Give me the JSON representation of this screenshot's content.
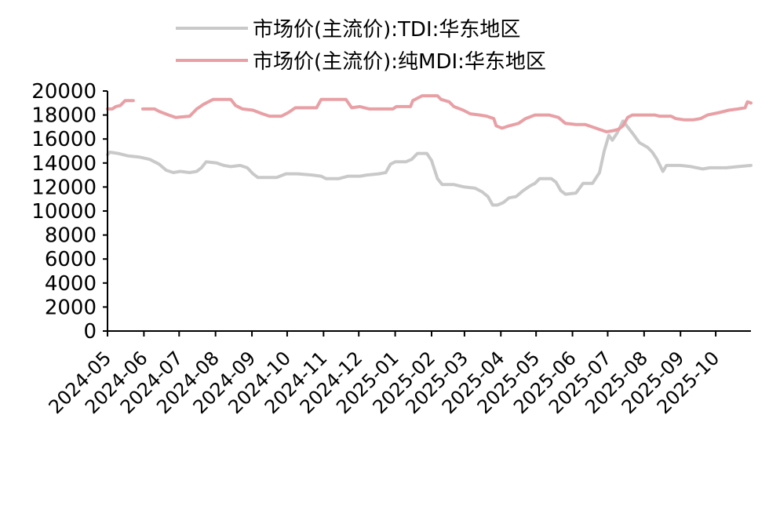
{
  "colors": {
    "tdi": "#c9c9c9",
    "mdi": "#e8a0a5",
    "axis": "#000000"
  },
  "chart_data": {
    "type": "line",
    "title": "",
    "xlabel": "",
    "ylabel": "",
    "ylim": [
      0,
      20000
    ],
    "yticks": [
      0,
      2000,
      4000,
      6000,
      8000,
      10000,
      12000,
      14000,
      16000,
      18000,
      20000
    ],
    "xlim": [
      "2024-05-01",
      "2025-10-31"
    ],
    "xticks": [
      "2024-05",
      "2024-06",
      "2024-07",
      "2024-08",
      "2024-09",
      "2024-10",
      "2024-11",
      "2024-12",
      "2025-01",
      "2025-02",
      "2025-03",
      "2025-04",
      "2025-05",
      "2025-06",
      "2025-07",
      "2025-08",
      "2025-09",
      "2025-10"
    ],
    "grid": false,
    "legend_position": "top",
    "series": [
      {
        "name": "市场价(主流价):TDI:华东地区",
        "color": "#c9c9c9",
        "points": [
          [
            "2024-05-01",
            14700
          ],
          [
            "2024-05-03",
            14900
          ],
          [
            "2024-05-10",
            14800
          ],
          [
            "2024-05-18",
            14600
          ],
          [
            "2024-05-28",
            14500
          ],
          [
            "2024-06-06",
            14300
          ],
          [
            "2024-06-14",
            13900
          ],
          [
            "2024-06-20",
            13400
          ],
          [
            "2024-06-26",
            13200
          ],
          [
            "2024-07-02",
            13300
          ],
          [
            "2024-07-10",
            13200
          ],
          [
            "2024-07-16",
            13300
          ],
          [
            "2024-07-20",
            13600
          ],
          [
            "2024-07-24",
            14100
          ],
          [
            "2024-08-02",
            14000
          ],
          [
            "2024-08-08",
            13800
          ],
          [
            "2024-08-14",
            13700
          ],
          [
            "2024-08-22",
            13800
          ],
          [
            "2024-08-28",
            13600
          ],
          [
            "2024-09-02",
            13100
          ],
          [
            "2024-09-06",
            12800
          ],
          [
            "2024-09-22",
            12800
          ],
          [
            "2024-09-30",
            13100
          ],
          [
            "2024-10-10",
            13100
          ],
          [
            "2024-10-22",
            13000
          ],
          [
            "2024-10-30",
            12900
          ],
          [
            "2024-11-03",
            12700
          ],
          [
            "2024-11-14",
            12700
          ],
          [
            "2024-11-22",
            12900
          ],
          [
            "2024-12-02",
            12900
          ],
          [
            "2024-12-08",
            13000
          ],
          [
            "2024-12-18",
            13100
          ],
          [
            "2024-12-24",
            13200
          ],
          [
            "2024-12-28",
            13900
          ],
          [
            "2025-01-01",
            14100
          ],
          [
            "2025-01-10",
            14100
          ],
          [
            "2025-01-15",
            14300
          ],
          [
            "2025-01-20",
            14800
          ],
          [
            "2025-01-28",
            14800
          ],
          [
            "2025-02-01",
            14200
          ],
          [
            "2025-02-06",
            12700
          ],
          [
            "2025-02-10",
            12200
          ],
          [
            "2025-02-20",
            12200
          ],
          [
            "2025-03-01",
            12000
          ],
          [
            "2025-03-10",
            11900
          ],
          [
            "2025-03-16",
            11600
          ],
          [
            "2025-03-21",
            11200
          ],
          [
            "2025-03-25",
            10500
          ],
          [
            "2025-03-29",
            10500
          ],
          [
            "2025-04-03",
            10700
          ],
          [
            "2025-04-08",
            11100
          ],
          [
            "2025-04-14",
            11200
          ],
          [
            "2025-04-20",
            11700
          ],
          [
            "2025-04-26",
            12100
          ],
          [
            "2025-04-30",
            12300
          ],
          [
            "2025-05-04",
            12700
          ],
          [
            "2025-05-14",
            12700
          ],
          [
            "2025-05-18",
            12400
          ],
          [
            "2025-05-22",
            11700
          ],
          [
            "2025-05-26",
            11400
          ],
          [
            "2025-06-04",
            11500
          ],
          [
            "2025-06-10",
            12300
          ],
          [
            "2025-06-18",
            12300
          ],
          [
            "2025-06-24",
            13200
          ],
          [
            "2025-06-28",
            15000
          ],
          [
            "2025-07-02",
            16300
          ],
          [
            "2025-07-05",
            15900
          ],
          [
            "2025-07-09",
            16500
          ],
          [
            "2025-07-14",
            17500
          ],
          [
            "2025-07-18",
            17000
          ],
          [
            "2025-07-22",
            16500
          ],
          [
            "2025-07-28",
            15700
          ],
          [
            "2025-08-04",
            15300
          ],
          [
            "2025-08-08",
            14900
          ],
          [
            "2025-08-12",
            14300
          ],
          [
            "2025-08-17",
            13300
          ],
          [
            "2025-08-20",
            13800
          ],
          [
            "2025-09-01",
            13800
          ],
          [
            "2025-09-10",
            13700
          ],
          [
            "2025-09-20",
            13500
          ],
          [
            "2025-09-26",
            13600
          ],
          [
            "2025-10-10",
            13600
          ],
          [
            "2025-10-20",
            13700
          ],
          [
            "2025-10-31",
            13800
          ]
        ]
      },
      {
        "name": "市场价(主流价):纯MDI:华东地区",
        "color": "#e8a0a5",
        "segments": [
          [
            [
              "2024-05-01",
              18500
            ],
            [
              "2024-05-05",
              18500
            ],
            [
              "2024-05-08",
              18700
            ],
            [
              "2024-05-12",
              18800
            ],
            [
              "2024-05-16",
              19200
            ],
            [
              "2024-05-23",
              19200
            ]
          ],
          [
            [
              "2024-05-31",
              18500
            ],
            [
              "2024-06-10",
              18500
            ],
            [
              "2024-06-14",
              18300
            ],
            [
              "2024-06-22",
              18000
            ],
            [
              "2024-06-28",
              17800
            ],
            [
              "2024-07-10",
              17900
            ],
            [
              "2024-07-16",
              18500
            ],
            [
              "2024-07-22",
              18900
            ],
            [
              "2024-07-30",
              19300
            ],
            [
              "2024-08-14",
              19300
            ],
            [
              "2024-08-18",
              18800
            ],
            [
              "2024-08-24",
              18500
            ],
            [
              "2024-09-02",
              18400
            ],
            [
              "2024-09-10",
              18100
            ],
            [
              "2024-09-16",
              17900
            ],
            [
              "2024-09-26",
              17900
            ],
            [
              "2024-10-02",
              18200
            ],
            [
              "2024-10-08",
              18600
            ],
            [
              "2024-10-26",
              18600
            ],
            [
              "2024-10-30",
              19300
            ],
            [
              "2024-11-20",
              19300
            ],
            [
              "2024-11-25",
              18600
            ],
            [
              "2024-12-02",
              18700
            ],
            [
              "2024-12-10",
              18500
            ],
            [
              "2024-12-30",
              18500
            ],
            [
              "2025-01-02",
              18700
            ],
            [
              "2025-01-14",
              18700
            ],
            [
              "2025-01-16",
              19200
            ],
            [
              "2025-01-24",
              19600
            ],
            [
              "2025-02-06",
              19600
            ],
            [
              "2025-02-09",
              19300
            ],
            [
              "2025-02-16",
              19100
            ],
            [
              "2025-02-20",
              18700
            ],
            [
              "2025-02-28",
              18400
            ],
            [
              "2025-03-06",
              18100
            ],
            [
              "2025-03-14",
              18000
            ],
            [
              "2025-03-20",
              17900
            ],
            [
              "2025-03-26",
              17700
            ],
            [
              "2025-03-28",
              17100
            ],
            [
              "2025-04-02",
              16900
            ],
            [
              "2025-04-08",
              17100
            ],
            [
              "2025-04-16",
              17300
            ],
            [
              "2025-04-22",
              17700
            ],
            [
              "2025-04-30",
              18000
            ],
            [
              "2025-05-12",
              18000
            ],
            [
              "2025-05-20",
              17800
            ],
            [
              "2025-05-26",
              17300
            ],
            [
              "2025-06-04",
              17200
            ],
            [
              "2025-06-12",
              17200
            ],
            [
              "2025-06-18",
              17000
            ],
            [
              "2025-06-24",
              16800
            ],
            [
              "2025-06-30",
              16600
            ],
            [
              "2025-07-06",
              16700
            ],
            [
              "2025-07-10",
              16800
            ],
            [
              "2025-07-14",
              17100
            ],
            [
              "2025-07-18",
              17800
            ],
            [
              "2025-07-22",
              18000
            ],
            [
              "2025-08-10",
              18000
            ],
            [
              "2025-08-14",
              17900
            ],
            [
              "2025-08-24",
              17900
            ],
            [
              "2025-08-28",
              17700
            ],
            [
              "2025-09-04",
              17600
            ],
            [
              "2025-09-12",
              17600
            ],
            [
              "2025-09-18",
              17700
            ],
            [
              "2025-09-24",
              18000
            ],
            [
              "2025-10-04",
              18200
            ],
            [
              "2025-10-12",
              18400
            ],
            [
              "2025-10-20",
              18500
            ],
            [
              "2025-10-26",
              18600
            ],
            [
              "2025-10-28",
              19100
            ],
            [
              "2025-10-31",
              19000
            ]
          ]
        ]
      }
    ]
  }
}
